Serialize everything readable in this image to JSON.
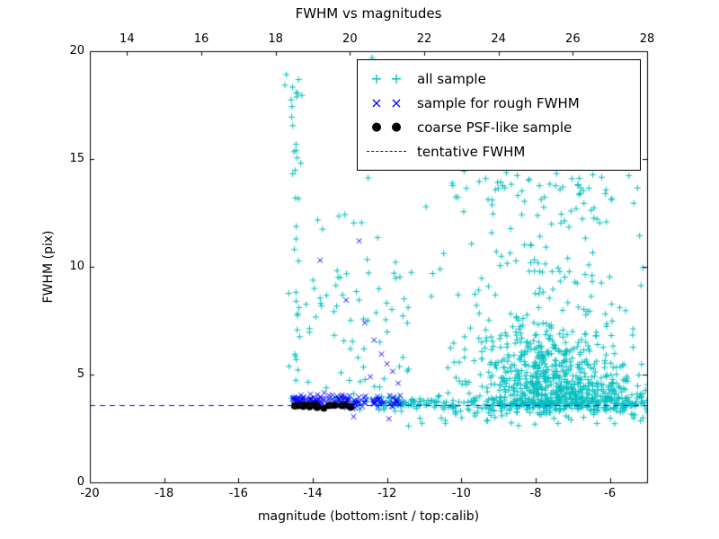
{
  "chart_data": {
    "type": "scatter",
    "title": "FWHM vs magnitudes",
    "xlabel": "magnitude (bottom:isnt / top:calib)",
    "ylabel": "FWHM (pix)",
    "xlim": [
      -20,
      -5
    ],
    "xlim_top": [
      13,
      28
    ],
    "ylim": [
      0,
      20
    ],
    "xticks_bottom": [
      -20,
      -18,
      -16,
      -14,
      -12,
      -10,
      -8,
      -6
    ],
    "xticks_top": [
      14,
      16,
      18,
      20,
      22,
      24,
      26,
      28
    ],
    "yticks": [
      0,
      5,
      10,
      15,
      20
    ],
    "grid": false,
    "legend_position": "upper right",
    "tentative_fwhm": 3.6,
    "series": [
      {
        "name": "all sample",
        "marker": "plus",
        "color": "#00bfbf",
        "clusters": [
          {
            "n": 420,
            "x": {
              "dist": "normal",
              "p": [
                -7.7,
                1.1
              ]
            },
            "y": {
              "dist": "normal",
              "p": [
                5.1,
                1.25
              ]
            },
            "clip_y": [
              3.1,
              9.0
            ]
          },
          {
            "n": 300,
            "x": {
              "dist": "normal",
              "p": [
                -7.1,
                1.3
              ]
            },
            "y": {
              "dist": "normal",
              "p": [
                4.05,
                0.45
              ]
            },
            "clip_y": [
              3.1,
              5.6
            ]
          },
          {
            "n": 240,
            "x": {
              "dist": "uniform",
              "p": [
                -12.3,
                -5.05
              ]
            },
            "y": {
              "dist": "normal",
              "p": [
                3.62,
                0.16
              ]
            }
          },
          {
            "n": 30,
            "x": {
              "dist": "uniform",
              "p": [
                -11.5,
                -5.1
              ]
            },
            "y": {
              "dist": "uniform",
              "p": [
                2.55,
                3.25
              ]
            }
          },
          {
            "n": 150,
            "x": {
              "dist": "normal",
              "p": [
                -7.8,
                1.5
              ]
            },
            "y": {
              "dist": "uniform",
              "p": [
                6.5,
                14.3
              ]
            },
            "clip_x": [
              -11.6,
              -5.05
            ]
          },
          {
            "n": 22,
            "x": {
              "dist": "uniform",
              "p": [
                -10.6,
                -5.15
              ]
            },
            "y": {
              "dist": "uniform",
              "p": [
                13.0,
                15.3
              ]
            }
          },
          {
            "n": 26,
            "x": {
              "dist": "normal",
              "p": [
                -14.45,
                0.1
              ]
            },
            "y": {
              "dist": "uniform",
              "p": [
                4.2,
                15.7
              ]
            }
          },
          {
            "n": 12,
            "x": {
              "dist": "normal",
              "p": [
                -14.38,
                0.14
              ]
            },
            "y": {
              "dist": "uniform",
              "p": [
                16.2,
                19.6
              ]
            }
          },
          {
            "n": 55,
            "x": {
              "dist": "uniform",
              "p": [
                -14.2,
                -11.4
              ]
            },
            "y": {
              "dist": "uniform",
              "p": [
                4.0,
                9.6
              ]
            }
          },
          {
            "n": 12,
            "x": {
              "dist": "uniform",
              "p": [
                -13.9,
                -11.6
              ]
            },
            "y": {
              "dist": "uniform",
              "p": [
                9.6,
                12.5
              ]
            }
          },
          {
            "n": 6,
            "x": {
              "dist": "normal",
              "p": [
                -12.45,
                0.12
              ]
            },
            "y": {
              "dist": "uniform",
              "p": [
                13.2,
                19.8
              ]
            }
          },
          {
            "n": 18,
            "x": {
              "dist": "uniform",
              "p": [
                -14.6,
                -12.3
              ]
            },
            "y": {
              "dist": "normal",
              "p": [
                3.7,
                0.18
              ]
            }
          }
        ],
        "points": [
          [
            -12.4,
            19.7
          ],
          [
            -14.45,
            15.4
          ],
          [
            -13.3,
            12.35
          ]
        ]
      },
      {
        "name": "sample for rough FWHM",
        "marker": "x",
        "color": "#0000ff",
        "clusters": [
          {
            "n": 85,
            "x": {
              "dist": "uniform",
              "p": [
                -14.55,
                -13.1
              ]
            },
            "y": {
              "dist": "normal",
              "p": [
                3.8,
                0.14
              ]
            },
            "clip_y": [
              3.5,
              4.3
            ]
          },
          {
            "n": 60,
            "x": {
              "dist": "uniform",
              "p": [
                -13.1,
                -11.55
              ]
            },
            "y": {
              "dist": "normal",
              "p": [
                3.75,
                0.16
              ]
            },
            "clip_y": [
              3.4,
              4.25
            ]
          }
        ],
        "points": [
          [
            -13.8,
            10.3
          ],
          [
            -12.75,
            11.2
          ],
          [
            -13.1,
            8.45
          ],
          [
            -12.6,
            7.4
          ],
          [
            -12.35,
            6.6
          ],
          [
            -12.15,
            5.95
          ],
          [
            -12.0,
            5.5
          ],
          [
            -11.85,
            5.15
          ],
          [
            -12.45,
            4.9
          ],
          [
            -11.7,
            4.6
          ],
          [
            -12.9,
            3.05
          ],
          [
            -11.95,
            2.95
          ]
        ]
      },
      {
        "name": "coarse PSF-like sample",
        "marker": "circle",
        "color": "#000000",
        "clusters": [
          {
            "n": 26,
            "x": {
              "dist": "uniform",
              "p": [
                -14.5,
                -12.95
              ]
            },
            "y": {
              "dist": "normal",
              "p": [
                3.55,
                0.05
              ]
            },
            "clip_y": [
              3.42,
              3.68
            ]
          }
        ],
        "points": []
      },
      {
        "name": "tentative FWHM",
        "marker": "dashed-line",
        "color": "#0000ff",
        "y": 3.6
      }
    ]
  }
}
